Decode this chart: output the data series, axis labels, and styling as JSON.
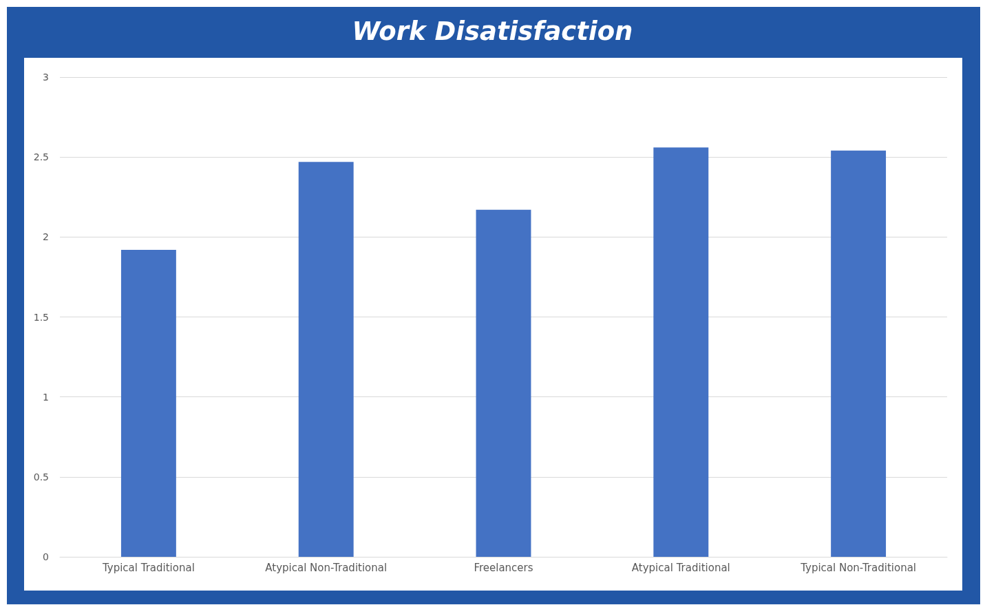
{
  "chart_data": {
    "type": "bar",
    "title": "Work Disatisfaction",
    "categories": [
      "Typical Traditional",
      "Atypical Non-Traditional",
      "Freelancers",
      "Atypical Traditional",
      "Typical Non-Traditional"
    ],
    "values": [
      1.92,
      2.47,
      2.17,
      2.56,
      2.54
    ],
    "color": "#4472c4",
    "ylim": [
      0,
      3
    ],
    "yticks": [
      0,
      0.5,
      1,
      1.5,
      2,
      2.5,
      3
    ],
    "grid": "y"
  }
}
